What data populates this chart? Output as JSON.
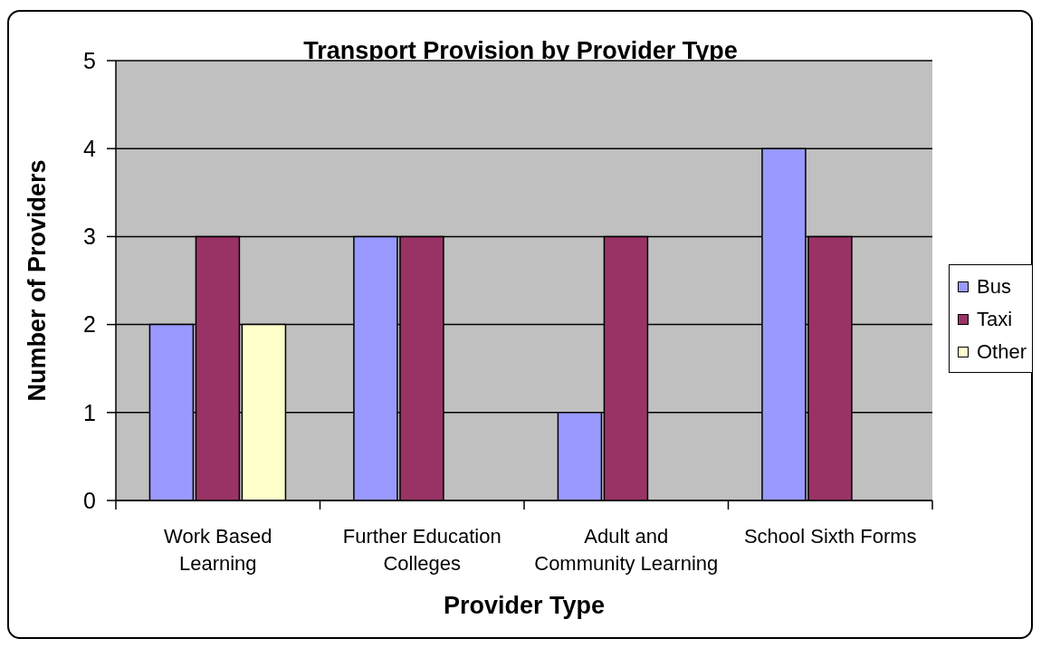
{
  "chart_data": {
    "type": "bar",
    "title": "Transport Provision by Provider Type",
    "xlabel": "Provider Type",
    "ylabel": "Number of Providers",
    "categories": [
      "Work Based Learning",
      "Further Education Colleges",
      "Adult and Community Learning",
      "School Sixth Forms"
    ],
    "series": [
      {
        "name": "Bus",
        "color": "#9999ff",
        "values": [
          2,
          3,
          1,
          4
        ]
      },
      {
        "name": "Taxi",
        "color": "#993366",
        "values": [
          3,
          3,
          3,
          3
        ]
      },
      {
        "name": "Other",
        "color": "#ffffcc",
        "values": [
          2,
          null,
          null,
          null
        ]
      }
    ],
    "ylim": [
      0,
      5
    ],
    "yticks": [
      0,
      1,
      2,
      3,
      4,
      5
    ],
    "grid": "y",
    "legend": "right"
  }
}
